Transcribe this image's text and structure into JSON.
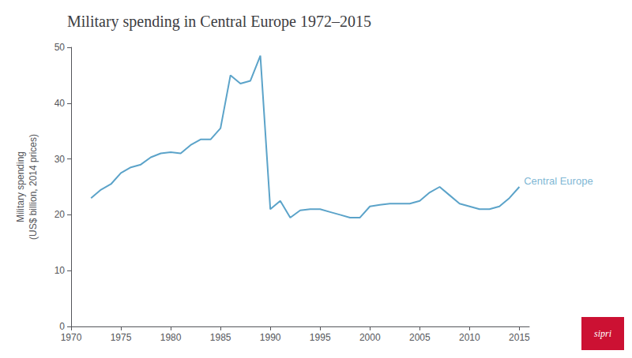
{
  "chart_data": {
    "type": "line",
    "title": "Military spending in Central Europe 1972–2015",
    "y_label": "Military spending\n(US$ billion, 2014 prices)",
    "x": [
      1972,
      1973,
      1974,
      1975,
      1976,
      1977,
      1978,
      1979,
      1980,
      1981,
      1982,
      1983,
      1984,
      1985,
      1986,
      1987,
      1988,
      1989,
      1990,
      1991,
      1992,
      1993,
      1994,
      1995,
      1996,
      1997,
      1998,
      1999,
      2000,
      2001,
      2002,
      2003,
      2004,
      2005,
      2006,
      2007,
      2008,
      2009,
      2010,
      2011,
      2012,
      2013,
      2014,
      2015
    ],
    "values": [
      23.0,
      24.5,
      25.5,
      27.5,
      28.5,
      29.0,
      30.3,
      31.0,
      31.2,
      31.0,
      32.5,
      33.5,
      33.5,
      35.5,
      45.0,
      43.5,
      44.0,
      48.5,
      21.0,
      22.5,
      19.5,
      20.8,
      21.0,
      21.0,
      20.5,
      20.0,
      19.5,
      19.5,
      21.5,
      21.8,
      22.0,
      22.0,
      22.0,
      22.5,
      24.0,
      25.0,
      23.5,
      22.0,
      21.5,
      21.0,
      21.0,
      21.5,
      23.0,
      25.0
    ],
    "color": "#5ba3c9",
    "xlim": [
      1970,
      2016
    ],
    "xticks": [
      1970,
      1975,
      1980,
      1985,
      1990,
      1995,
      2000,
      2005,
      2010,
      2015
    ],
    "ylim": [
      0,
      50
    ],
    "yticks": [
      0,
      10,
      20,
      30,
      40,
      50
    ],
    "grid": false,
    "annotations": [
      {
        "text": "Central Europe",
        "x": 2015.3,
        "y": 26.0,
        "color": "#5ba3c9"
      },
      {
        "text": "sipri",
        "color": "#cc1133"
      }
    ]
  }
}
